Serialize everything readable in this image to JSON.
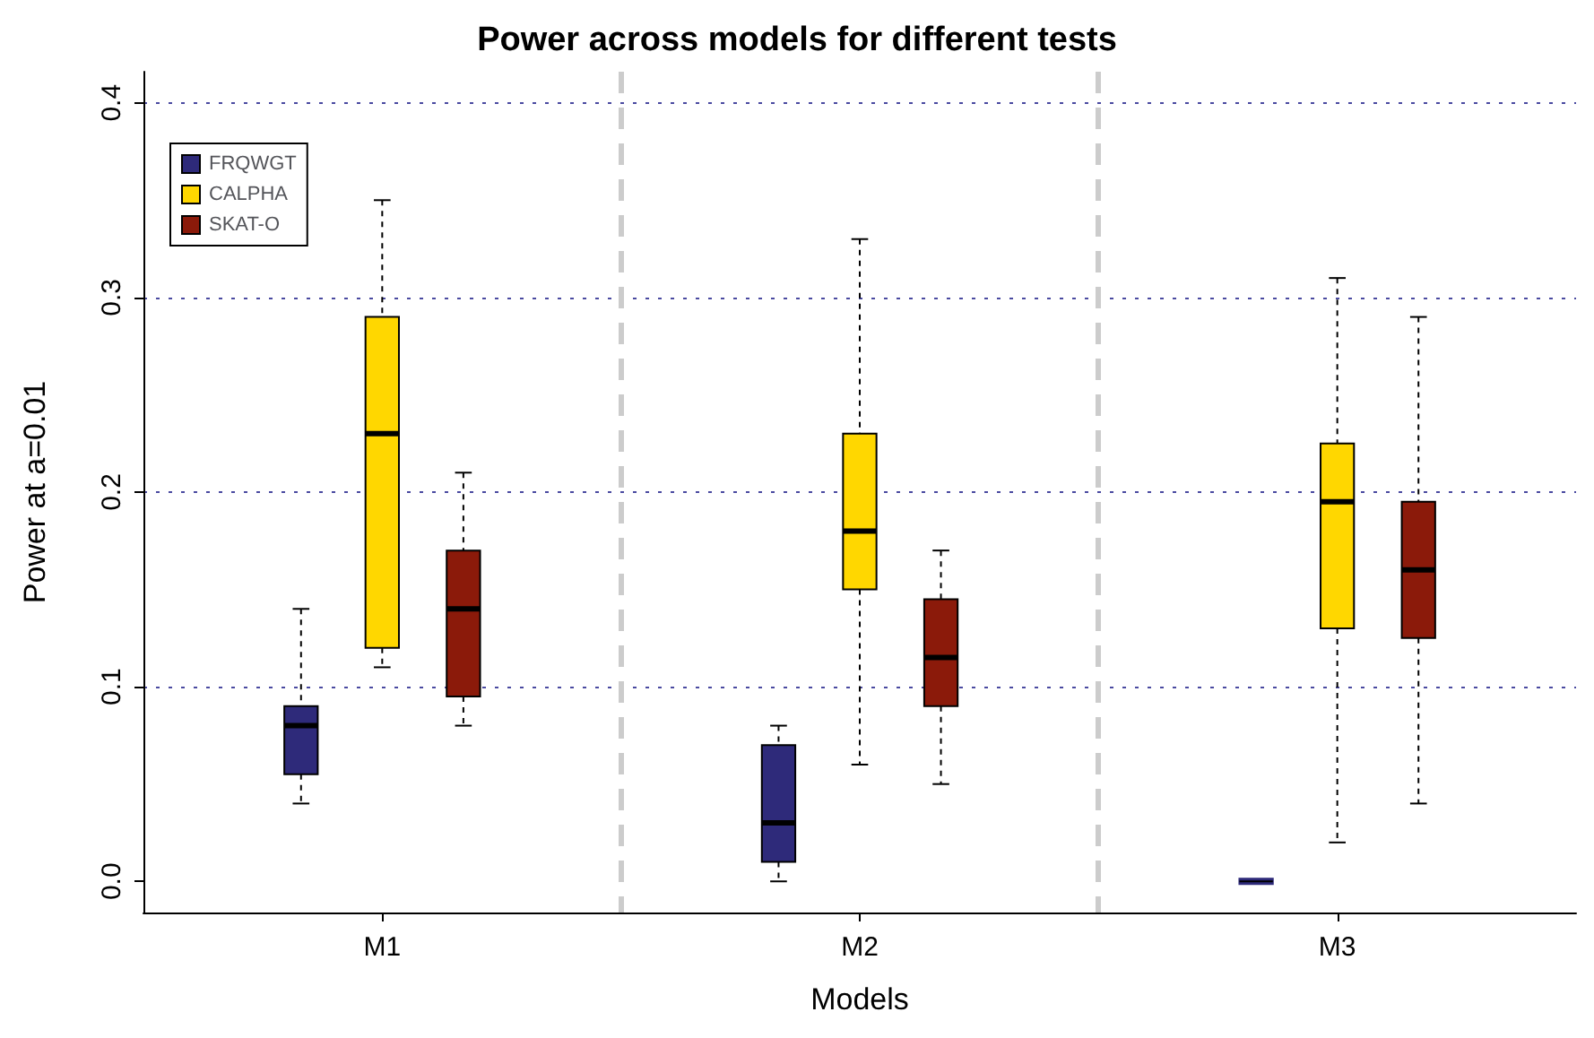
{
  "chart_data": {
    "type": "box",
    "title": "Power across models for different tests",
    "xlabel": "Models",
    "ylabel": "Power at a=0.01",
    "categories": [
      "M1",
      "M2",
      "M3"
    ],
    "ylim": [
      -0.016,
      0.416
    ],
    "yticks": [
      {
        "value": 0,
        "label": "0.0"
      },
      0.1,
      0.2,
      0.3,
      0.4
    ],
    "grid": "y",
    "legend": "top left",
    "series": [
      {
        "name": "FRQWGT",
        "color": "#2e2a7a",
        "boxes": [
          {
            "low": 0.04,
            "q1": 0.055,
            "median": 0.08,
            "q3": 0.09,
            "high": 0.14
          },
          {
            "low": 0,
            "q1": 0.01,
            "median": 0.03,
            "q3": 0.07,
            "high": 0.08
          },
          {
            "low": 0,
            "q1": 0,
            "median": 0,
            "q3": 0,
            "high": 0
          }
        ]
      },
      {
        "name": "CALPHA",
        "color": "#ffd700",
        "boxes": [
          {
            "low": 0.11,
            "q1": 0.12,
            "median": 0.23,
            "q3": 0.29,
            "high": 0.35
          },
          {
            "low": 0.06,
            "q1": 0.15,
            "median": 0.18,
            "q3": 0.23,
            "high": 0.33
          },
          {
            "low": 0.02,
            "q1": 0.13,
            "median": 0.195,
            "q3": 0.225,
            "high": 0.31
          }
        ]
      },
      {
        "name": "SKAT-O",
        "color": "#8b1a0a",
        "boxes": [
          {
            "low": 0.08,
            "q1": 0.095,
            "median": 0.14,
            "q3": 0.17,
            "high": 0.21
          },
          {
            "low": 0.05,
            "q1": 0.09,
            "median": 0.115,
            "q3": 0.145,
            "high": 0.17
          },
          {
            "low": 0.04,
            "q1": 0.125,
            "median": 0.16,
            "q3": 0.195,
            "high": 0.29
          }
        ]
      }
    ]
  }
}
